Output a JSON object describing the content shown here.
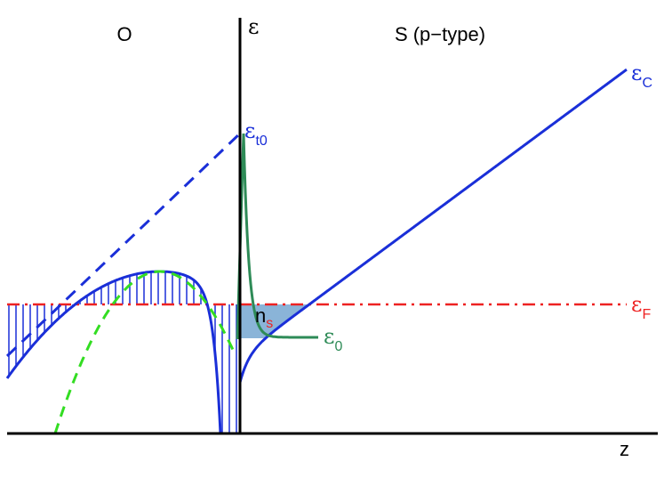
{
  "regions": {
    "oxide": "O",
    "semiconductor": "S (p−type)"
  },
  "axes": {
    "energy": "ε",
    "position": "z"
  },
  "levels": [
    {
      "symbol": "ε",
      "subscript": "C"
    },
    {
      "symbol": "ε",
      "subscript": "t0"
    },
    {
      "symbol": "ε",
      "subscript": "F"
    },
    {
      "symbol": "ε",
      "subscript": "0"
    }
  ],
  "annotation": {
    "symbol": "n",
    "subscript": "s"
  }
}
